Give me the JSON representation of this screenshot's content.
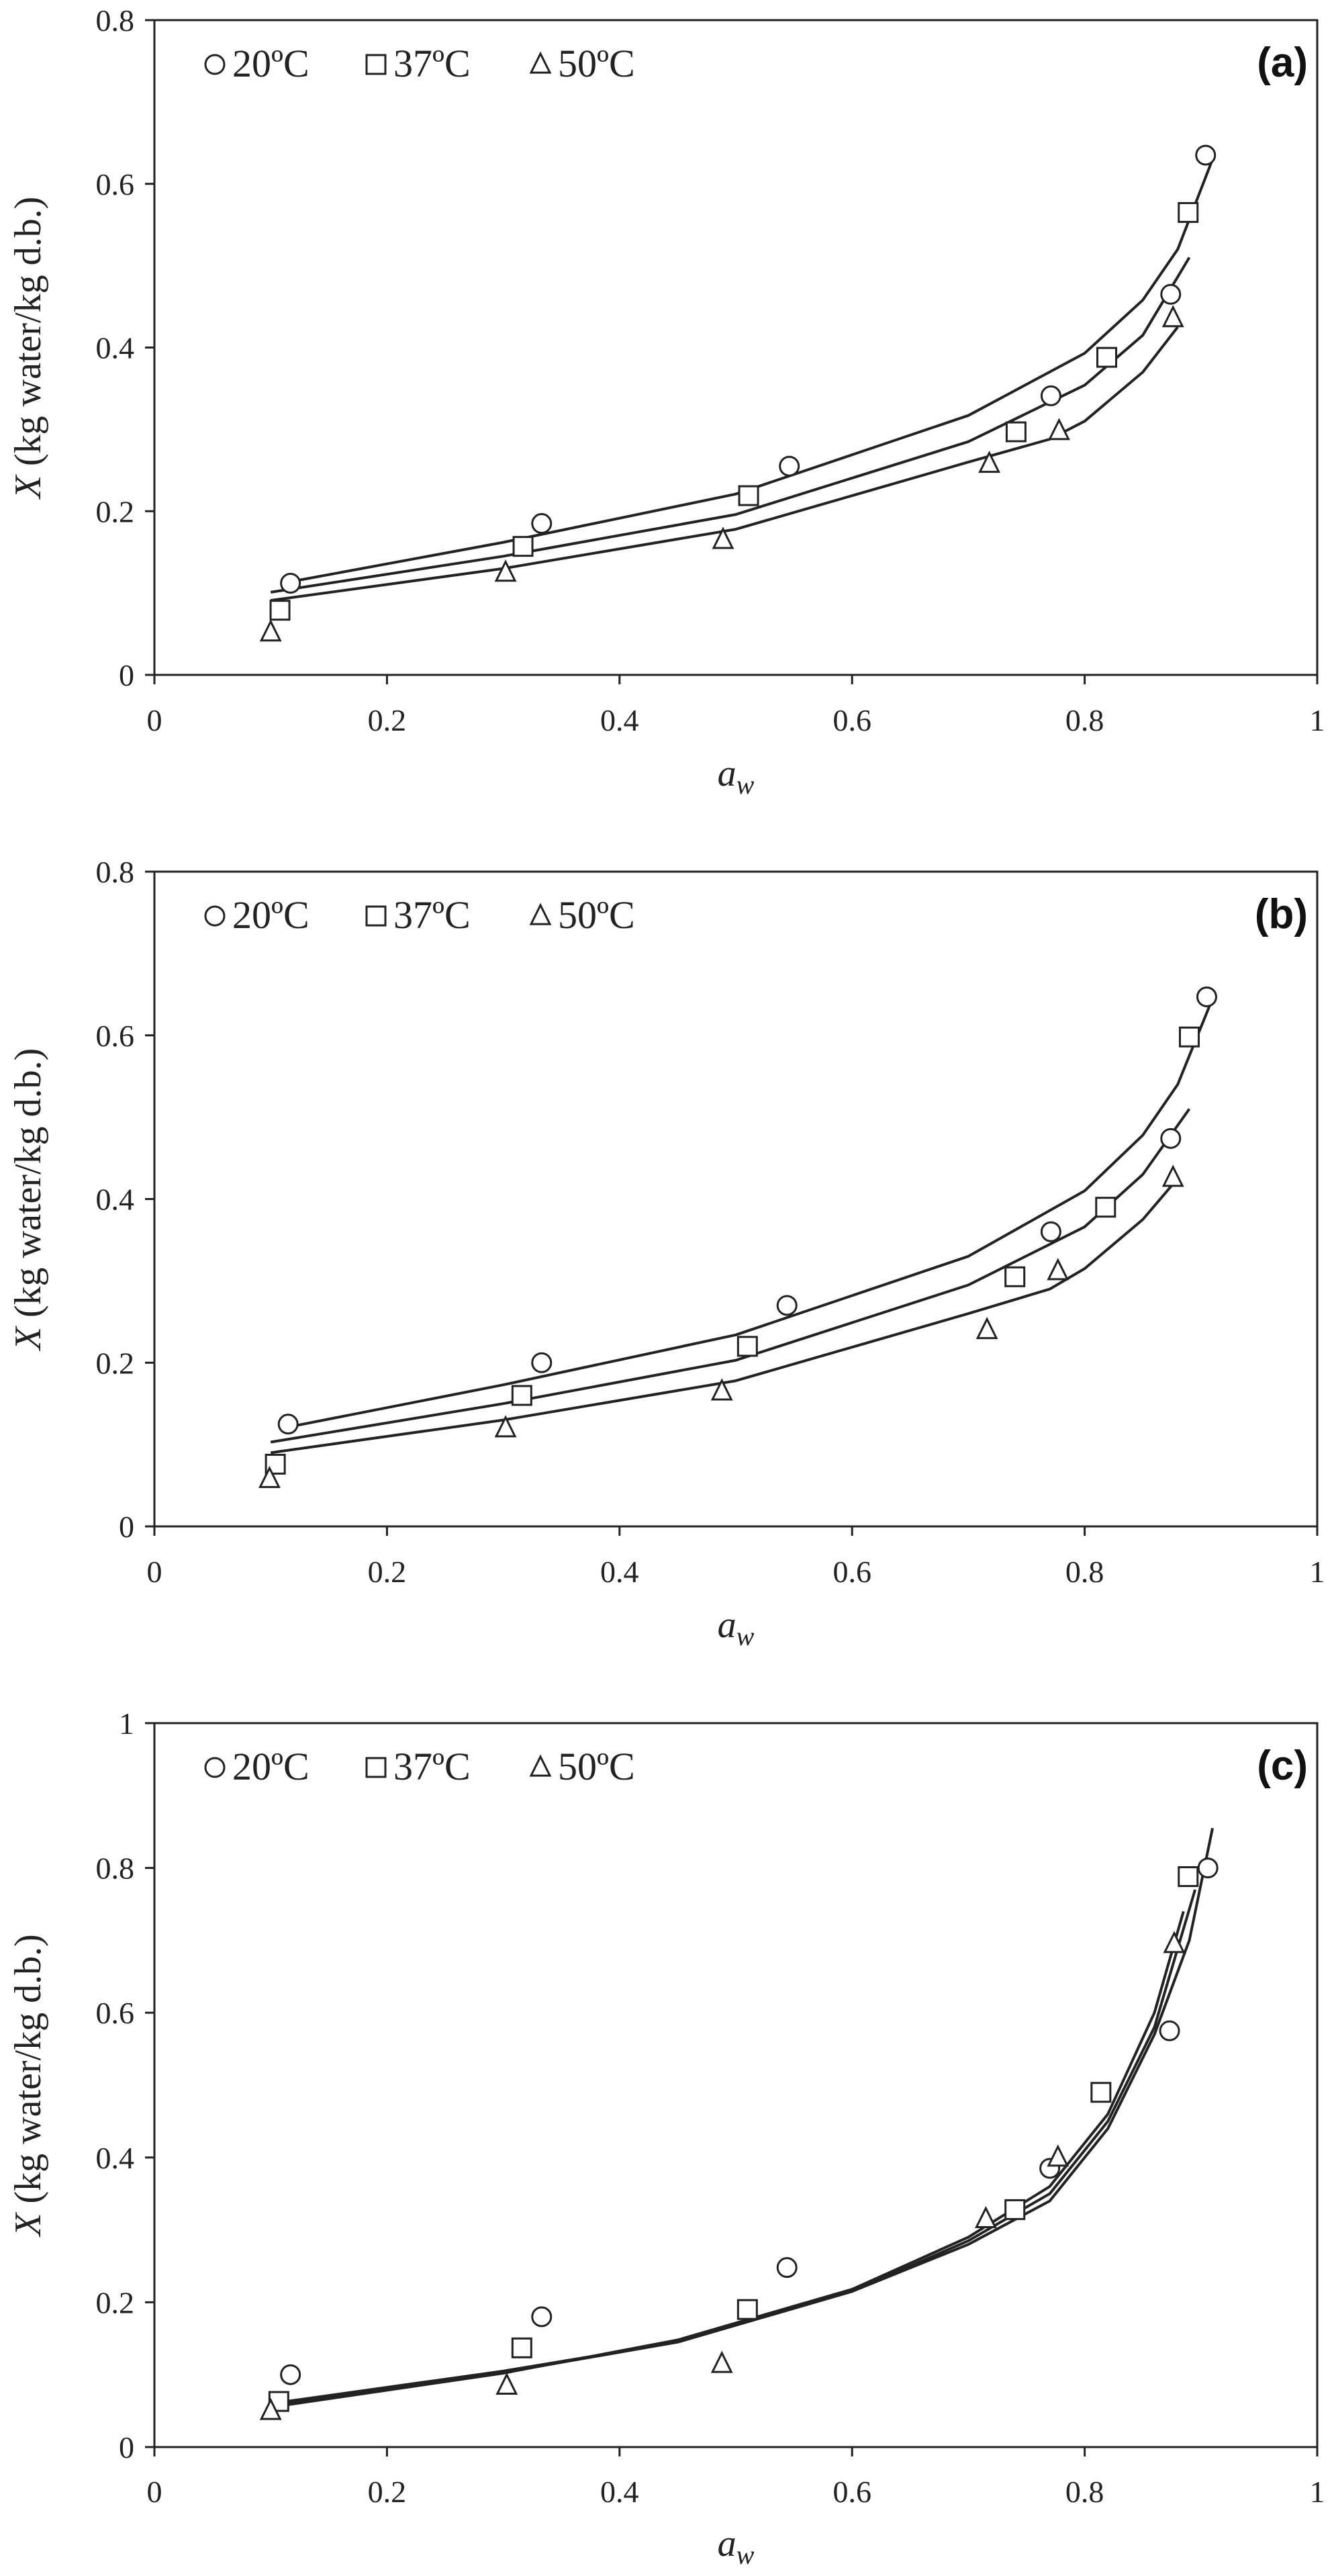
{
  "chart_data": [
    {
      "type": "scatter",
      "panel_label": "(a)",
      "xlabel_main": "a",
      "xlabel_sub": "w",
      "ylabel_var": "X",
      "ylabel_rest": " (kg water/kg d.b.)",
      "xlim": [
        0,
        1
      ],
      "ylim": [
        0,
        0.8
      ],
      "xticks": [
        0,
        0.2,
        0.4,
        0.6,
        0.8,
        1
      ],
      "xtick_labels": [
        "0",
        "0.2",
        "0.4",
        "0.6",
        "0.8",
        "1"
      ],
      "yticks": [
        0,
        0.2,
        0.4,
        0.6,
        0.8
      ],
      "ytick_labels": [
        "0",
        "0.2",
        "0.4",
        "0.6",
        "0.8"
      ],
      "legend_position": "top-left",
      "series": [
        {
          "name": "20ºC",
          "marker": "circle",
          "x": [
            0.117,
            0.333,
            0.546,
            0.771,
            0.874,
            0.904
          ],
          "y": [
            0.112,
            0.185,
            0.255,
            0.341,
            0.465,
            0.635
          ],
          "fit_x": [
            0.11,
            0.3,
            0.5,
            0.7,
            0.8,
            0.85,
            0.88,
            0.91
          ],
          "fit_y": [
            0.112,
            0.162,
            0.221,
            0.317,
            0.393,
            0.458,
            0.52,
            0.63
          ]
        },
        {
          "name": "37ºC",
          "marker": "square",
          "x": [
            0.108,
            0.317,
            0.511,
            0.741,
            0.819,
            0.889
          ],
          "y": [
            0.079,
            0.157,
            0.219,
            0.297,
            0.388,
            0.565
          ],
          "fit_x": [
            0.1,
            0.3,
            0.5,
            0.7,
            0.8,
            0.85,
            0.89
          ],
          "fit_y": [
            0.101,
            0.145,
            0.196,
            0.285,
            0.354,
            0.415,
            0.51
          ]
        },
        {
          "name": "50ºC",
          "marker": "triangle",
          "x": [
            0.1,
            0.302,
            0.489,
            0.718,
            0.778,
            0.876
          ],
          "y": [
            0.052,
            0.125,
            0.165,
            0.258,
            0.298,
            0.436
          ],
          "fit_x": [
            0.1,
            0.3,
            0.5,
            0.7,
            0.77,
            0.8,
            0.85,
            0.88
          ],
          "fit_y": [
            0.091,
            0.13,
            0.178,
            0.26,
            0.288,
            0.31,
            0.37,
            0.425
          ]
        }
      ]
    },
    {
      "type": "scatter",
      "panel_label": "(b)",
      "xlabel_main": "a",
      "xlabel_sub": "w",
      "ylabel_var": "X",
      "ylabel_rest": " (kg water/kg d.b.)",
      "xlim": [
        0,
        1
      ],
      "ylim": [
        0,
        0.8
      ],
      "xticks": [
        0,
        0.2,
        0.4,
        0.6,
        0.8,
        1
      ],
      "xtick_labels": [
        "0",
        "0.2",
        "0.4",
        "0.6",
        "0.8",
        "1"
      ],
      "yticks": [
        0,
        0.2,
        0.4,
        0.6,
        0.8
      ],
      "ytick_labels": [
        "0",
        "0.2",
        "0.4",
        "0.6",
        "0.8"
      ],
      "legend_position": "top-left",
      "series": [
        {
          "name": "20ºC",
          "marker": "circle",
          "x": [
            0.115,
            0.333,
            0.544,
            0.771,
            0.874,
            0.905
          ],
          "y": [
            0.125,
            0.2,
            0.27,
            0.36,
            0.474,
            0.647
          ],
          "fit_x": [
            0.11,
            0.3,
            0.5,
            0.7,
            0.8,
            0.85,
            0.88,
            0.91
          ],
          "fit_y": [
            0.12,
            0.173,
            0.234,
            0.33,
            0.41,
            0.478,
            0.54,
            0.645
          ]
        },
        {
          "name": "37ºC",
          "marker": "square",
          "x": [
            0.104,
            0.316,
            0.51,
            0.74,
            0.818,
            0.89
          ],
          "y": [
            0.076,
            0.16,
            0.22,
            0.305,
            0.39,
            0.598
          ],
          "fit_x": [
            0.1,
            0.3,
            0.5,
            0.7,
            0.8,
            0.85,
            0.89
          ],
          "fit_y": [
            0.103,
            0.15,
            0.203,
            0.295,
            0.366,
            0.43,
            0.51
          ]
        },
        {
          "name": "50ºC",
          "marker": "triangle",
          "x": [
            0.099,
            0.302,
            0.488,
            0.716,
            0.777,
            0.876
          ],
          "y": [
            0.058,
            0.12,
            0.165,
            0.24,
            0.312,
            0.426
          ],
          "fit_x": [
            0.1,
            0.3,
            0.5,
            0.7,
            0.77,
            0.8,
            0.85,
            0.88
          ],
          "fit_y": [
            0.09,
            0.13,
            0.178,
            0.26,
            0.29,
            0.315,
            0.375,
            0.425
          ]
        }
      ]
    },
    {
      "type": "scatter",
      "panel_label": "(c)",
      "xlabel_main": "a",
      "xlabel_sub": "w",
      "ylabel_var": "X",
      "ylabel_rest": " (kg water/kg d.b.)",
      "xlim": [
        0,
        1
      ],
      "ylim": [
        0,
        1
      ],
      "xticks": [
        0,
        0.2,
        0.4,
        0.6,
        0.8,
        1
      ],
      "xtick_labels": [
        "0",
        "0.2",
        "0.4",
        "0.6",
        "0.8",
        "1"
      ],
      "yticks": [
        0,
        0.2,
        0.4,
        0.6,
        0.8,
        1
      ],
      "ytick_labels": [
        "0",
        "0.2",
        "0.4",
        "0.6",
        "0.8",
        "1"
      ],
      "legend_position": "top-left",
      "series": [
        {
          "name": "20ºC",
          "marker": "circle",
          "x": [
            0.117,
            0.333,
            0.544,
            0.77,
            0.873,
            0.906
          ],
          "y": [
            0.1,
            0.18,
            0.248,
            0.385,
            0.575,
            0.8
          ],
          "fit_x": [
            0.1,
            0.3,
            0.45,
            0.6,
            0.7,
            0.77,
            0.82,
            0.86,
            0.89,
            0.91
          ],
          "fit_y": [
            0.06,
            0.105,
            0.145,
            0.215,
            0.28,
            0.34,
            0.44,
            0.57,
            0.7,
            0.855
          ]
        },
        {
          "name": "37ºC",
          "marker": "square",
          "x": [
            0.107,
            0.316,
            0.51,
            0.74,
            0.814,
            0.889
          ],
          "y": [
            0.063,
            0.137,
            0.19,
            0.328,
            0.49,
            0.788
          ],
          "fit_x": [
            0.1,
            0.3,
            0.45,
            0.6,
            0.7,
            0.77,
            0.82,
            0.86,
            0.895
          ],
          "fit_y": [
            0.058,
            0.103,
            0.145,
            0.215,
            0.285,
            0.35,
            0.45,
            0.58,
            0.77
          ]
        },
        {
          "name": "50ºC",
          "marker": "triangle",
          "x": [
            0.1,
            0.303,
            0.488,
            0.715,
            0.777,
            0.877
          ],
          "y": [
            0.05,
            0.085,
            0.115,
            0.315,
            0.4,
            0.695
          ],
          "fit_x": [
            0.1,
            0.3,
            0.45,
            0.6,
            0.7,
            0.77,
            0.82,
            0.86,
            0.885
          ],
          "fit_y": [
            0.055,
            0.102,
            0.148,
            0.218,
            0.29,
            0.36,
            0.46,
            0.6,
            0.74
          ]
        }
      ]
    }
  ]
}
